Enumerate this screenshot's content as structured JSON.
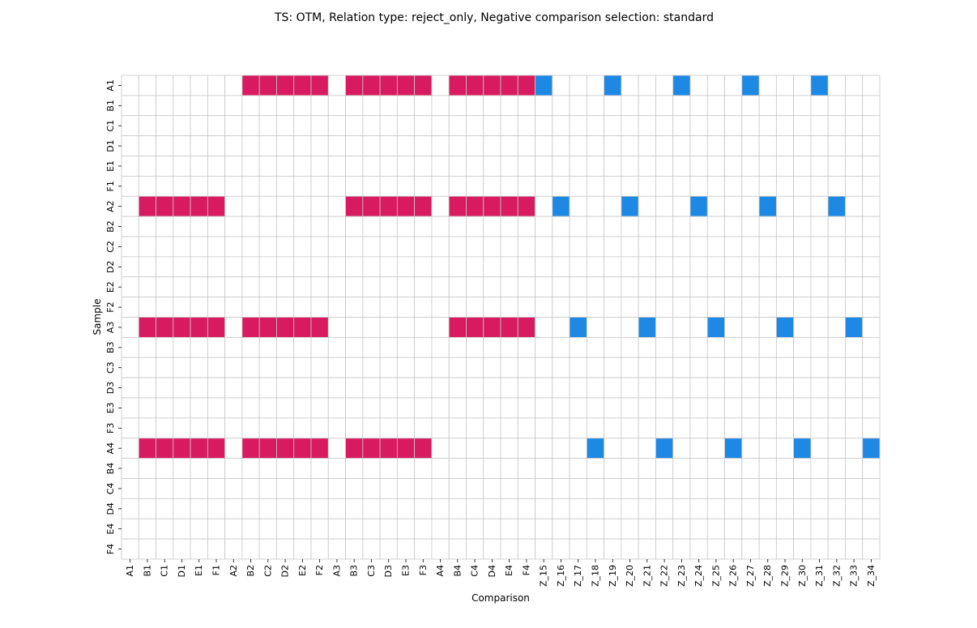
{
  "chart_data": {
    "type": "heatmap",
    "title": "TS: OTM, Relation type: reject_only, Negative comparison selection: standard",
    "xlabel": "Comparison",
    "ylabel": "Sample",
    "x_categories": [
      "A1",
      "B1",
      "C1",
      "D1",
      "E1",
      "F1",
      "A2",
      "B2",
      "C2",
      "D2",
      "E2",
      "F2",
      "A3",
      "B3",
      "C3",
      "D3",
      "E3",
      "F3",
      "A4",
      "B4",
      "C4",
      "D4",
      "E4",
      "F4",
      "Z_15",
      "Z_16",
      "Z_17",
      "Z_18",
      "Z_19",
      "Z_20",
      "Z_21",
      "Z_22",
      "Z_23",
      "Z_24",
      "Z_25",
      "Z_26",
      "Z_27",
      "Z_28",
      "Z_29",
      "Z_30",
      "Z_31",
      "Z_32",
      "Z_33",
      "Z_34"
    ],
    "y_categories": [
      "A1",
      "B1",
      "C1",
      "D1",
      "E1",
      "F1",
      "A2",
      "B2",
      "C2",
      "D2",
      "E2",
      "F2",
      "A3",
      "B3",
      "C3",
      "D3",
      "E3",
      "F3",
      "A4",
      "B4",
      "C4",
      "D4",
      "E4",
      "F4"
    ],
    "cells": [
      {
        "sample": "A1",
        "positive": [
          "B2",
          "C2",
          "D2",
          "E2",
          "F2",
          "B3",
          "C3",
          "D3",
          "E3",
          "F3",
          "B4",
          "C4",
          "D4",
          "E4",
          "F4"
        ],
        "negative": [
          "Z_15",
          "Z_19",
          "Z_23",
          "Z_27",
          "Z_31"
        ]
      },
      {
        "sample": "A2",
        "positive": [
          "B1",
          "C1",
          "D1",
          "E1",
          "F1",
          "B3",
          "C3",
          "D3",
          "E3",
          "F3",
          "B4",
          "C4",
          "D4",
          "E4",
          "F4"
        ],
        "negative": [
          "Z_16",
          "Z_20",
          "Z_24",
          "Z_28",
          "Z_32"
        ]
      },
      {
        "sample": "A3",
        "positive": [
          "B1",
          "C1",
          "D1",
          "E1",
          "F1",
          "B2",
          "C2",
          "D2",
          "E2",
          "F2",
          "B4",
          "C4",
          "D4",
          "E4",
          "F4"
        ],
        "negative": [
          "Z_17",
          "Z_21",
          "Z_25",
          "Z_29",
          "Z_33"
        ]
      },
      {
        "sample": "A4",
        "positive": [
          "B1",
          "C1",
          "D1",
          "E1",
          "F1",
          "B2",
          "C2",
          "D2",
          "E2",
          "F2",
          "B3",
          "C3",
          "D3",
          "E3",
          "F3"
        ],
        "negative": [
          "Z_18",
          "Z_22",
          "Z_26",
          "Z_30",
          "Z_34"
        ]
      }
    ],
    "colors": {
      "positive": "#d81b60",
      "negative": "#1e88e5",
      "empty": "#ffffff",
      "grid": "#c8c8c8"
    },
    "legend": "none"
  }
}
